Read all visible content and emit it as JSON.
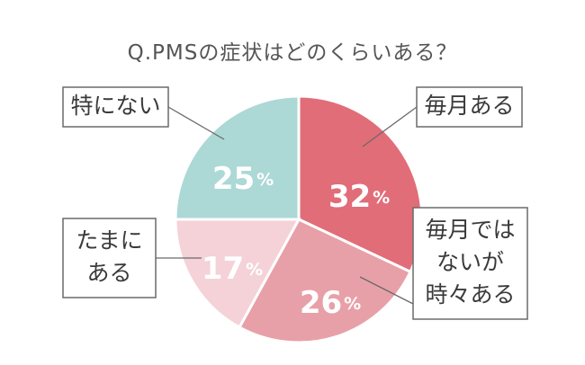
{
  "chart_data": {
    "type": "pie",
    "title": "Q.PMSの症状はどのくらいある？",
    "percent_symbol": "%",
    "slices": [
      {
        "label_lines": [
          "毎月ある"
        ],
        "value": 32,
        "color": "#e16d78"
      },
      {
        "label_lines": [
          "毎月では",
          "ないが",
          "時々ある"
        ],
        "value": 26,
        "color": "#e8a0a8"
      },
      {
        "label_lines": [
          "たまに",
          "ある"
        ],
        "value": 17,
        "color": "#f4d2d8"
      },
      {
        "label_lines": [
          "特にない"
        ],
        "value": 25,
        "color": "#acd8d6"
      }
    ]
  }
}
